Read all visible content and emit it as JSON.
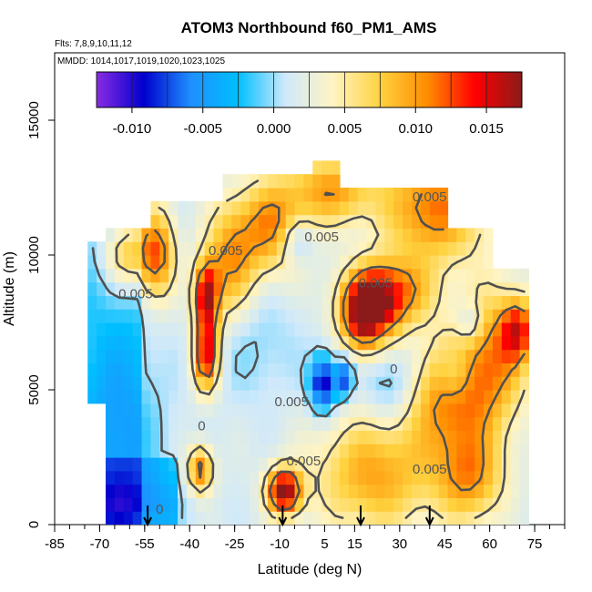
{
  "chart_data": {
    "type": "heatmap",
    "title": "ATOM3 Northbound f60_PM1_AMS",
    "flights_note": "Flts: 7,8,9,10,11,12",
    "dates_note": "MMDD: 1014,1017,1019,1020,1023,1025",
    "xlabel": "Latitude (deg N)",
    "ylabel": "Altitude (m)",
    "xlim": [
      -85,
      85
    ],
    "ylim": [
      0,
      17500
    ],
    "x_ticks": [
      -85,
      -70,
      -55,
      -40,
      -25,
      -10,
      5,
      15,
      30,
      45,
      60,
      75
    ],
    "x_tick_labels": [
      "-85",
      "-70",
      "-55",
      "-40",
      "-25",
      "-10",
      "5",
      "15",
      "30",
      "45",
      "60",
      "75"
    ],
    "y_ticks": [
      0,
      5000,
      10000,
      15000
    ],
    "y_tick_labels": [
      "0",
      "5000",
      "10000",
      "15000"
    ],
    "colorbar": {
      "range": [
        -0.0125,
        0.0175
      ],
      "ticks": [
        -0.01,
        -0.005,
        0.0,
        0.005,
        0.01,
        0.015
      ],
      "tick_labels": [
        "-0.010",
        "-0.005",
        "0.000",
        "0.005",
        "0.010",
        "0.015"
      ],
      "colors": [
        "#8a2be2",
        "#0000cd",
        "#1e90ff",
        "#00bfff",
        "#cfe9fb",
        "#fff4c2",
        "#ffd23f",
        "#ff8c00",
        "#ff0000",
        "#8b1a1a"
      ]
    },
    "contour_labels": [
      {
        "text": "0.005",
        "lat": -28,
        "alt": 10000
      },
      {
        "text": "0.005",
        "lat": -58,
        "alt": 8400
      },
      {
        "text": "0.005",
        "lat": 4,
        "alt": 10500
      },
      {
        "text": "0.005",
        "lat": 22,
        "alt": 8800
      },
      {
        "text": "0.005",
        "lat": 40,
        "alt": 12000
      },
      {
        "text": "0.005",
        "lat": -6,
        "alt": 4400
      },
      {
        "text": "0.005",
        "lat": -2,
        "alt": 2200
      },
      {
        "text": "0.005",
        "lat": 40,
        "alt": 1900
      },
      {
        "text": "0",
        "lat": 28,
        "alt": 5600
      },
      {
        "text": "0",
        "lat": -36,
        "alt": 3500
      },
      {
        "text": "0",
        "lat": -50,
        "alt": 400
      }
    ],
    "flight_arrows_lat": [
      -54,
      -9,
      17,
      40
    ],
    "field": {
      "lat_range": [
        -74,
        72
      ],
      "lat_step": 3,
      "alt_step": 500,
      "blobs": [
        {
          "lat": -62,
          "alt": 9800,
          "v": 0.008,
          "slat": 6,
          "salt": 900
        },
        {
          "lat": -52,
          "alt": 9800,
          "v": 0.009,
          "slat": 4,
          "salt": 1200
        },
        {
          "lat": -36,
          "alt": 8200,
          "v": 0.014,
          "slat": 3,
          "salt": 900
        },
        {
          "lat": -36,
          "alt": 6000,
          "v": 0.013,
          "slat": 3,
          "salt": 900
        },
        {
          "lat": -28,
          "alt": 9500,
          "v": 0.008,
          "slat": 6,
          "salt": 1500
        },
        {
          "lat": -14,
          "alt": 10800,
          "v": 0.009,
          "slat": 8,
          "salt": 1200
        },
        {
          "lat": 6,
          "alt": 12200,
          "v": 0.008,
          "slat": 10,
          "salt": 900
        },
        {
          "lat": 18,
          "alt": 7500,
          "v": 0.017,
          "slat": 6,
          "salt": 900
        },
        {
          "lat": 25,
          "alt": 8400,
          "v": 0.01,
          "slat": 10,
          "salt": 900
        },
        {
          "lat": 40,
          "alt": 11500,
          "v": 0.01,
          "slat": 12,
          "salt": 1400
        },
        {
          "lat": 45,
          "alt": 4500,
          "v": 0.009,
          "slat": 10,
          "salt": 1500
        },
        {
          "lat": 60,
          "alt": 6000,
          "v": 0.008,
          "slat": 8,
          "salt": 1800
        },
        {
          "lat": 68,
          "alt": 7000,
          "v": 0.01,
          "slat": 4,
          "salt": 800
        },
        {
          "lat": -10,
          "alt": 1000,
          "v": 0.016,
          "slat": 4,
          "salt": 600
        },
        {
          "lat": 20,
          "alt": 1600,
          "v": 0.008,
          "slat": 14,
          "salt": 1500
        },
        {
          "lat": 52,
          "alt": 1500,
          "v": 0.008,
          "slat": 8,
          "salt": 1200
        },
        {
          "lat": -38,
          "alt": 1800,
          "v": 0.01,
          "slat": 3,
          "salt": 600
        },
        {
          "lat": 3,
          "alt": 5000,
          "v": -0.012,
          "slat": 3,
          "salt": 700
        },
        {
          "lat": 10,
          "alt": 5200,
          "v": -0.009,
          "slat": 2,
          "salt": 500
        },
        {
          "lat": 26,
          "alt": 5000,
          "v": -0.004,
          "slat": 6,
          "salt": 1000
        },
        {
          "lat": 47,
          "alt": 5300,
          "v": -0.004,
          "slat": 4,
          "salt": 700
        },
        {
          "lat": -6,
          "alt": 10300,
          "v": -0.005,
          "slat": 4,
          "salt": 600
        },
        {
          "lat": 22,
          "alt": 7000,
          "v": -0.003,
          "slat": 3,
          "salt": 500
        },
        {
          "lat": 52,
          "alt": 7200,
          "v": -0.004,
          "slat": 3,
          "salt": 500
        },
        {
          "lat": -65,
          "alt": 3000,
          "v": -0.004,
          "slat": 10,
          "salt": 3000
        },
        {
          "lat": -62,
          "alt": 500,
          "v": -0.003,
          "slat": 12,
          "salt": 700
        },
        {
          "lat": -20,
          "alt": 6500,
          "v": -0.002,
          "slat": 10,
          "salt": 1500
        }
      ]
    }
  }
}
